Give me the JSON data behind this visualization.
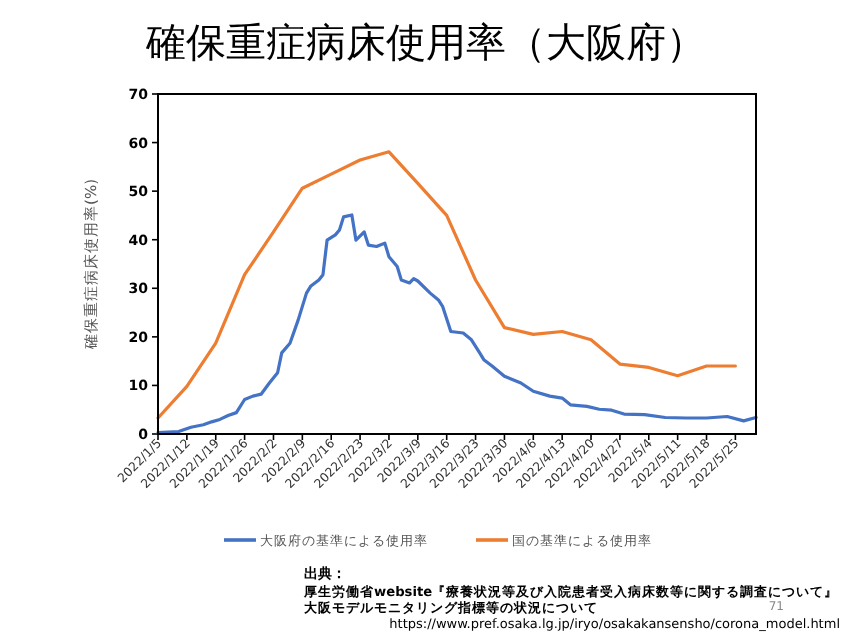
{
  "chart_data": {
    "type": "line",
    "title": "確保重症病床使用率（大阪府）",
    "ylabel": "確保重症病床使用率(%)",
    "xlim": [
      "2022-01-05",
      "2022-05-30"
    ],
    "xticks": [
      {
        "value": "2022-01-05",
        "label": "2022/1/5"
      },
      {
        "value": "2022-01-12",
        "label": "2022/1/12"
      },
      {
        "value": "2022-01-19",
        "label": "2022/1/19"
      },
      {
        "value": "2022-01-26",
        "label": "2022/1/26"
      },
      {
        "value": "2022-02-02",
        "label": "2022/2/2"
      },
      {
        "value": "2022-02-09",
        "label": "2022/2/9"
      },
      {
        "value": "2022-02-16",
        "label": "2022/2/16"
      },
      {
        "value": "2022-02-23",
        "label": "2022/2/23"
      },
      {
        "value": "2022-03-02",
        "label": "2022/3/2"
      },
      {
        "value": "2022-03-09",
        "label": "2022/3/9"
      },
      {
        "value": "2022-03-16",
        "label": "2022/3/16"
      },
      {
        "value": "2022-03-23",
        "label": "2022/3/23"
      },
      {
        "value": "2022-03-30",
        "label": "2022/3/30"
      },
      {
        "value": "2022-04-06",
        "label": "2022/4/6"
      },
      {
        "value": "2022-04-13",
        "label": "2022/4/13"
      },
      {
        "value": "2022-04-20",
        "label": "2022/4/20"
      },
      {
        "value": "2022-04-27",
        "label": "2022/4/27"
      },
      {
        "value": "2022-05-04",
        "label": "2022/5/4"
      },
      {
        "value": "2022-05-11",
        "label": "2022/5/11"
      },
      {
        "value": "2022-05-18",
        "label": "2022/5/18"
      },
      {
        "value": "2022-05-25",
        "label": "2022/5/25"
      }
    ],
    "ylim": [
      0,
      70
    ],
    "yticks": [
      0,
      10,
      20,
      30,
      40,
      50,
      60,
      70
    ],
    "grid": false,
    "legend": "bottom",
    "marker": "none",
    "line_style": "solid",
    "series": [
      {
        "name": "大阪府の基準による使用率",
        "color": "#4472c4",
        "x": [
          "2022-01-05",
          "2022-01-10",
          "2022-01-13",
          "2022-01-16",
          "2022-01-18",
          "2022-01-20",
          "2022-01-22",
          "2022-01-24",
          "2022-01-26",
          "2022-01-28",
          "2022-01-30",
          "2022-02-01",
          "2022-02-03",
          "2022-02-04",
          "2022-02-06",
          "2022-02-08",
          "2022-02-10",
          "2022-02-11",
          "2022-02-13",
          "2022-02-14",
          "2022-02-15",
          "2022-02-17",
          "2022-02-18",
          "2022-02-19",
          "2022-02-21",
          "2022-02-22",
          "2022-02-24",
          "2022-02-25",
          "2022-02-27",
          "2022-03-01",
          "2022-03-02",
          "2022-03-04",
          "2022-03-05",
          "2022-03-07",
          "2022-03-08",
          "2022-03-09",
          "2022-03-12",
          "2022-03-14",
          "2022-03-15",
          "2022-03-17",
          "2022-03-20",
          "2022-03-22",
          "2022-03-24",
          "2022-03-25",
          "2022-03-27",
          "2022-03-30",
          "2022-04-03",
          "2022-04-06",
          "2022-04-10",
          "2022-04-13",
          "2022-04-15",
          "2022-04-19",
          "2022-04-22",
          "2022-04-25",
          "2022-04-28",
          "2022-05-03",
          "2022-05-08",
          "2022-05-13",
          "2022-05-18",
          "2022-05-23",
          "2022-05-27",
          "2022-05-30"
        ],
        "values": [
          0.3,
          0.5,
          1.4,
          1.9,
          2.5,
          3.0,
          3.8,
          4.4,
          7.1,
          7.8,
          8.2,
          10.5,
          12.6,
          16.7,
          18.7,
          23.5,
          29.0,
          30.4,
          31.7,
          32.8,
          39.9,
          41.0,
          42.0,
          44.7,
          45.1,
          39.9,
          41.6,
          38.9,
          38.6,
          39.3,
          36.5,
          34.5,
          31.7,
          31.1,
          32.0,
          31.5,
          29.0,
          27.6,
          26.3,
          21.1,
          20.8,
          19.4,
          16.7,
          15.3,
          14.0,
          11.9,
          10.5,
          8.8,
          7.8,
          7.4,
          6.0,
          5.7,
          5.1,
          4.9,
          4.1,
          4.0,
          3.4,
          3.3,
          3.3,
          3.6,
          2.7,
          3.4
        ]
      },
      {
        "name": "国の基準による使用率",
        "color": "#ed7d31",
        "x": [
          "2022-01-05",
          "2022-01-12",
          "2022-01-19",
          "2022-01-26",
          "2022-02-02",
          "2022-02-09",
          "2022-02-16",
          "2022-02-23",
          "2022-03-02",
          "2022-03-09",
          "2022-03-16",
          "2022-03-23",
          "2022-03-30",
          "2022-04-06",
          "2022-04-13",
          "2022-04-20",
          "2022-04-27",
          "2022-05-04",
          "2022-05-11",
          "2022-05-18",
          "2022-05-25"
        ],
        "values": [
          3.3,
          9.8,
          18.7,
          32.8,
          41.6,
          50.6,
          53.5,
          56.4,
          58.1,
          51.6,
          45.0,
          31.7,
          21.9,
          20.5,
          21.1,
          19.4,
          14.4,
          13.7,
          12.0,
          14.0,
          14.0
        ]
      }
    ],
    "annotations": [
      "出典：",
      "厚生労働省website『療養状況等及び入院患者受入病床数等に関する調査について』",
      "大阪モデルモニタリング指標等の状況について",
      "https://www.pref.osaka.lg.jp/iryo/osakakansensho/corona_model.html",
      "71"
    ]
  }
}
